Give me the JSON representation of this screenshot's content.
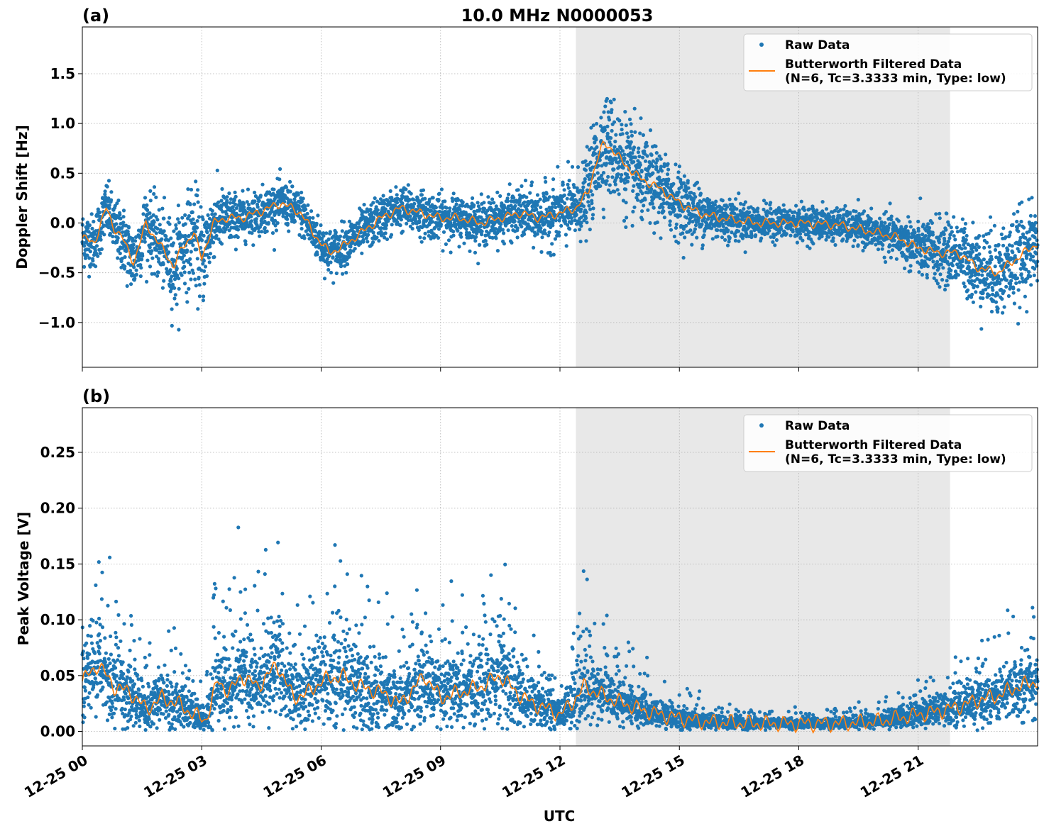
{
  "chart_data": {
    "type": "scatter",
    "title": "10.0 MHz N0000053",
    "xlabel": "UTC",
    "x_range_hours": [
      0,
      24
    ],
    "x_ticks": [
      {
        "hour": 0,
        "label": "12-25 00"
      },
      {
        "hour": 3,
        "label": "12-25 03"
      },
      {
        "hour": 6,
        "label": "12-25 06"
      },
      {
        "hour": 9,
        "label": "12-25 09"
      },
      {
        "hour": 12,
        "label": "12-25 12"
      },
      {
        "hour": 15,
        "label": "12-25 15"
      },
      {
        "hour": 18,
        "label": "12-25 18"
      },
      {
        "hour": 21,
        "label": "12-25 21"
      }
    ],
    "shaded_interval_hours": [
      12.4,
      21.8
    ],
    "grid": true,
    "legend_placement": "upper-right",
    "colors": {
      "raw": "#1f77b4",
      "filtered": "#ff7f0e",
      "shade": "#e8e8e8"
    },
    "legend": {
      "raw_label": "Raw Data",
      "filtered_label_line1": "Butterworth Filtered Data",
      "filtered_label_line2": "(N=6, Tc=3.3333 min, Type: low)"
    },
    "panels": [
      {
        "label": "(a)",
        "ylabel": "Doppler Shift [Hz]",
        "ylim": [
          -1.45,
          1.97
        ],
        "y_ticks": [
          {
            "value": 1.5,
            "label": "1.5"
          },
          {
            "value": 1.0,
            "label": "1.0"
          },
          {
            "value": 0.5,
            "label": "0.5"
          },
          {
            "value": 0.0,
            "label": "0.0"
          },
          {
            "value": -0.5,
            "label": "−0.5"
          },
          {
            "value": -1.0,
            "label": "−1.0"
          }
        ],
        "series": [
          {
            "name": "Butterworth Filtered Data",
            "x": [
              0,
              0.3,
              0.6,
              0.8,
              1.0,
              1.3,
              1.6,
              1.9,
              2.1,
              2.3,
              2.5,
              2.8,
              3.0,
              3.3,
              3.6,
              4.0,
              4.5,
              5.0,
              5.5,
              5.8,
              6.2,
              6.5,
              7.0,
              7.5,
              8.0,
              8.5,
              9.0,
              9.5,
              10.0,
              10.5,
              11.0,
              11.5,
              12.0,
              12.4,
              12.7,
              12.9,
              13.1,
              13.3,
              13.6,
              14.0,
              14.5,
              15.0,
              15.5,
              16.0,
              17.0,
              18.0,
              19.0,
              20.0,
              20.5,
              21.0,
              21.5,
              22.0,
              22.5,
              23.0,
              23.5,
              24.0
            ],
            "y": [
              -0.15,
              -0.2,
              0.15,
              -0.05,
              -0.15,
              -0.4,
              0.0,
              -0.2,
              -0.3,
              -0.45,
              -0.25,
              -0.1,
              -0.35,
              0.0,
              0.05,
              0.05,
              0.12,
              0.2,
              0.1,
              -0.1,
              -0.3,
              -0.25,
              -0.1,
              0.05,
              0.15,
              0.1,
              0.05,
              0.05,
              0.0,
              0.05,
              0.1,
              0.05,
              0.1,
              0.15,
              0.3,
              0.6,
              0.8,
              0.75,
              0.6,
              0.45,
              0.35,
              0.2,
              0.1,
              0.05,
              0.0,
              0.0,
              -0.02,
              -0.1,
              -0.15,
              -0.25,
              -0.3,
              -0.3,
              -0.45,
              -0.5,
              -0.35,
              -0.2
            ]
          },
          {
            "name": "Raw Data",
            "spread": [
              0.25,
              0.25,
              0.25,
              0.25,
              0.3,
              0.3,
              0.3,
              0.35,
              0.35,
              0.4,
              0.4,
              0.45,
              0.45,
              0.3,
              0.25,
              0.2,
              0.2,
              0.2,
              0.2,
              0.2,
              0.2,
              0.2,
              0.2,
              0.2,
              0.2,
              0.2,
              0.2,
              0.2,
              0.2,
              0.2,
              0.22,
              0.25,
              0.3,
              0.3,
              0.35,
              0.4,
              0.45,
              0.45,
              0.45,
              0.4,
              0.35,
              0.3,
              0.25,
              0.2,
              0.15,
              0.15,
              0.15,
              0.15,
              0.2,
              0.25,
              0.3,
              0.3,
              0.35,
              0.4,
              0.4,
              0.35
            ]
          }
        ]
      },
      {
        "label": "(b)",
        "ylabel": "Peak Voltage [V]",
        "ylim": [
          -0.013,
          0.29
        ],
        "y_ticks": [
          {
            "value": 0.25,
            "label": "0.25"
          },
          {
            "value": 0.2,
            "label": "0.20"
          },
          {
            "value": 0.15,
            "label": "0.15"
          },
          {
            "value": 0.1,
            "label": "0.10"
          },
          {
            "value": 0.05,
            "label": "0.05"
          },
          {
            "value": 0.0,
            "label": "0.00"
          }
        ],
        "series": [
          {
            "name": "Butterworth Filtered Data",
            "x": [
              0,
              0.4,
              0.8,
              1.2,
              1.6,
              2.0,
              2.4,
              2.8,
              3.1,
              3.4,
              3.7,
              4.0,
              4.4,
              4.9,
              5.3,
              5.7,
              6.0,
              6.5,
              7.0,
              7.5,
              8.0,
              8.6,
              9.0,
              9.5,
              10.0,
              10.5,
              10.9,
              11.3,
              11.7,
              12.0,
              12.3,
              12.6,
              12.9,
              13.2,
              13.6,
              14.0,
              14.5,
              15.0,
              15.5,
              16.0,
              17.0,
              18.0,
              19.0,
              20.0,
              20.5,
              21.0,
              21.5,
              22.0,
              22.5,
              23.0,
              23.5,
              24.0
            ],
            "y": [
              0.045,
              0.06,
              0.04,
              0.035,
              0.02,
              0.03,
              0.025,
              0.015,
              0.01,
              0.045,
              0.035,
              0.05,
              0.04,
              0.06,
              0.03,
              0.035,
              0.045,
              0.05,
              0.04,
              0.035,
              0.025,
              0.05,
              0.03,
              0.035,
              0.04,
              0.05,
              0.035,
              0.025,
              0.02,
              0.015,
              0.025,
              0.04,
              0.035,
              0.03,
              0.025,
              0.02,
              0.015,
              0.012,
              0.009,
              0.008,
              0.007,
              0.007,
              0.007,
              0.009,
              0.012,
              0.015,
              0.018,
              0.022,
              0.028,
              0.032,
              0.04,
              0.045
            ]
          },
          {
            "name": "Raw Data",
            "spread": [
              0.03,
              0.035,
              0.03,
              0.025,
              0.02,
              0.025,
              0.02,
              0.015,
              0.01,
              0.035,
              0.03,
              0.035,
              0.03,
              0.04,
              0.025,
              0.03,
              0.035,
              0.04,
              0.035,
              0.03,
              0.025,
              0.035,
              0.025,
              0.03,
              0.03,
              0.04,
              0.03,
              0.02,
              0.02,
              0.015,
              0.02,
              0.03,
              0.025,
              0.02,
              0.018,
              0.015,
              0.01,
              0.008,
              0.006,
              0.005,
              0.004,
              0.004,
              0.004,
              0.005,
              0.008,
              0.01,
              0.012,
              0.015,
              0.018,
              0.02,
              0.025,
              0.03
            ]
          }
        ]
      }
    ]
  }
}
